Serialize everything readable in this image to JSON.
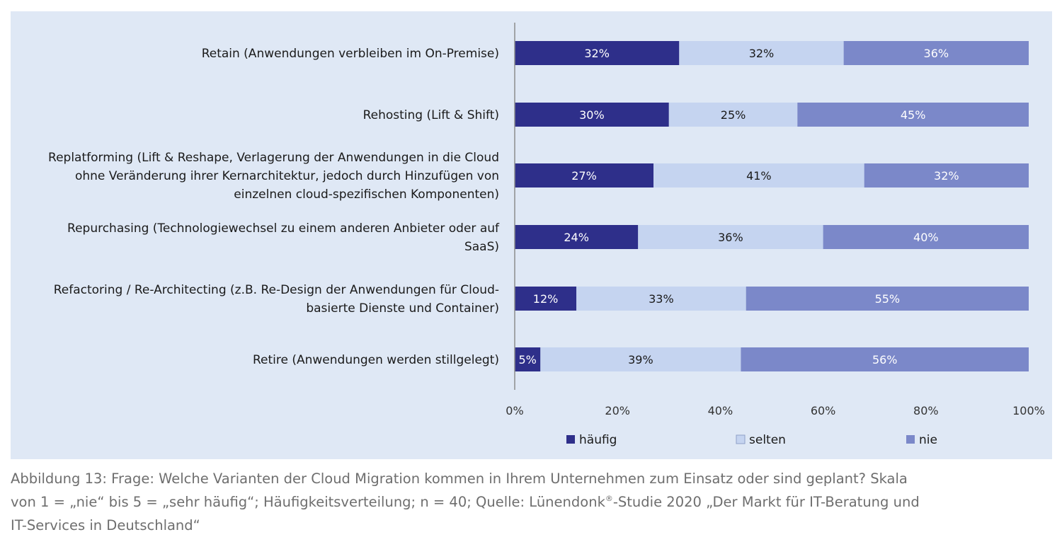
{
  "chart_data": {
    "type": "bar",
    "orientation": "horizontal",
    "stacked": "percent",
    "categories": [
      [
        "Retain (Anwendungen verbleiben im On-Premise)"
      ],
      [
        "Rehosting (Lift & Shift)"
      ],
      [
        "Replatforming (Lift & Reshape, Verlagerung der Anwendungen in die Cloud",
        "ohne Veränderung ihrer Kernarchitektur, jedoch durch Hinzufügen von",
        "einzelnen cloud-spezifischen Komponenten)"
      ],
      [
        "Repurchasing (Technologiewechsel zu einem anderen Anbieter oder auf",
        "SaaS)"
      ],
      [
        "Refactoring / Re-Architecting (z.B. Re-Design der Anwendungen für Cloud-",
        "basierte Dienste und Container)"
      ],
      [
        "Retire (Anwendungen werden stillgelegt)"
      ]
    ],
    "series": [
      {
        "name": "häufig",
        "color": "#2e2f8a",
        "text_color": "#ffffff",
        "values": [
          32,
          30,
          27,
          24,
          12,
          5
        ]
      },
      {
        "name": "selten",
        "color": "#c5d4f0",
        "text_color": "#1a1a1a",
        "values": [
          32,
          25,
          41,
          36,
          33,
          39
        ]
      },
      {
        "name": "nie",
        "color": "#7b88c9",
        "text_color": "#ffffff",
        "values": [
          36,
          45,
          32,
          40,
          55,
          56
        ]
      }
    ],
    "value_suffix": "%",
    "xlim": [
      0,
      100
    ],
    "xticks": [
      "0%",
      "20%",
      "40%",
      "60%",
      "80%",
      "100%"
    ],
    "legend_position": "bottom",
    "grid": false
  },
  "caption": {
    "line1": "Abbildung 13: Frage: Welche Varianten der Cloud Migration kommen in Ihrem Unternehmen zum Einsatz oder sind geplant? Skala",
    "line2_a": "von 1 = „nie“ bis 5 = „sehr häufig“; Häufigkeitsverteilung; n = 40; Quelle: Lünendonk",
    "line2_sup": "®",
    "line2_b": "-Studie 2020 „Der Markt für IT-Beratung und",
    "line3": "IT-Services in Deutschland“"
  }
}
